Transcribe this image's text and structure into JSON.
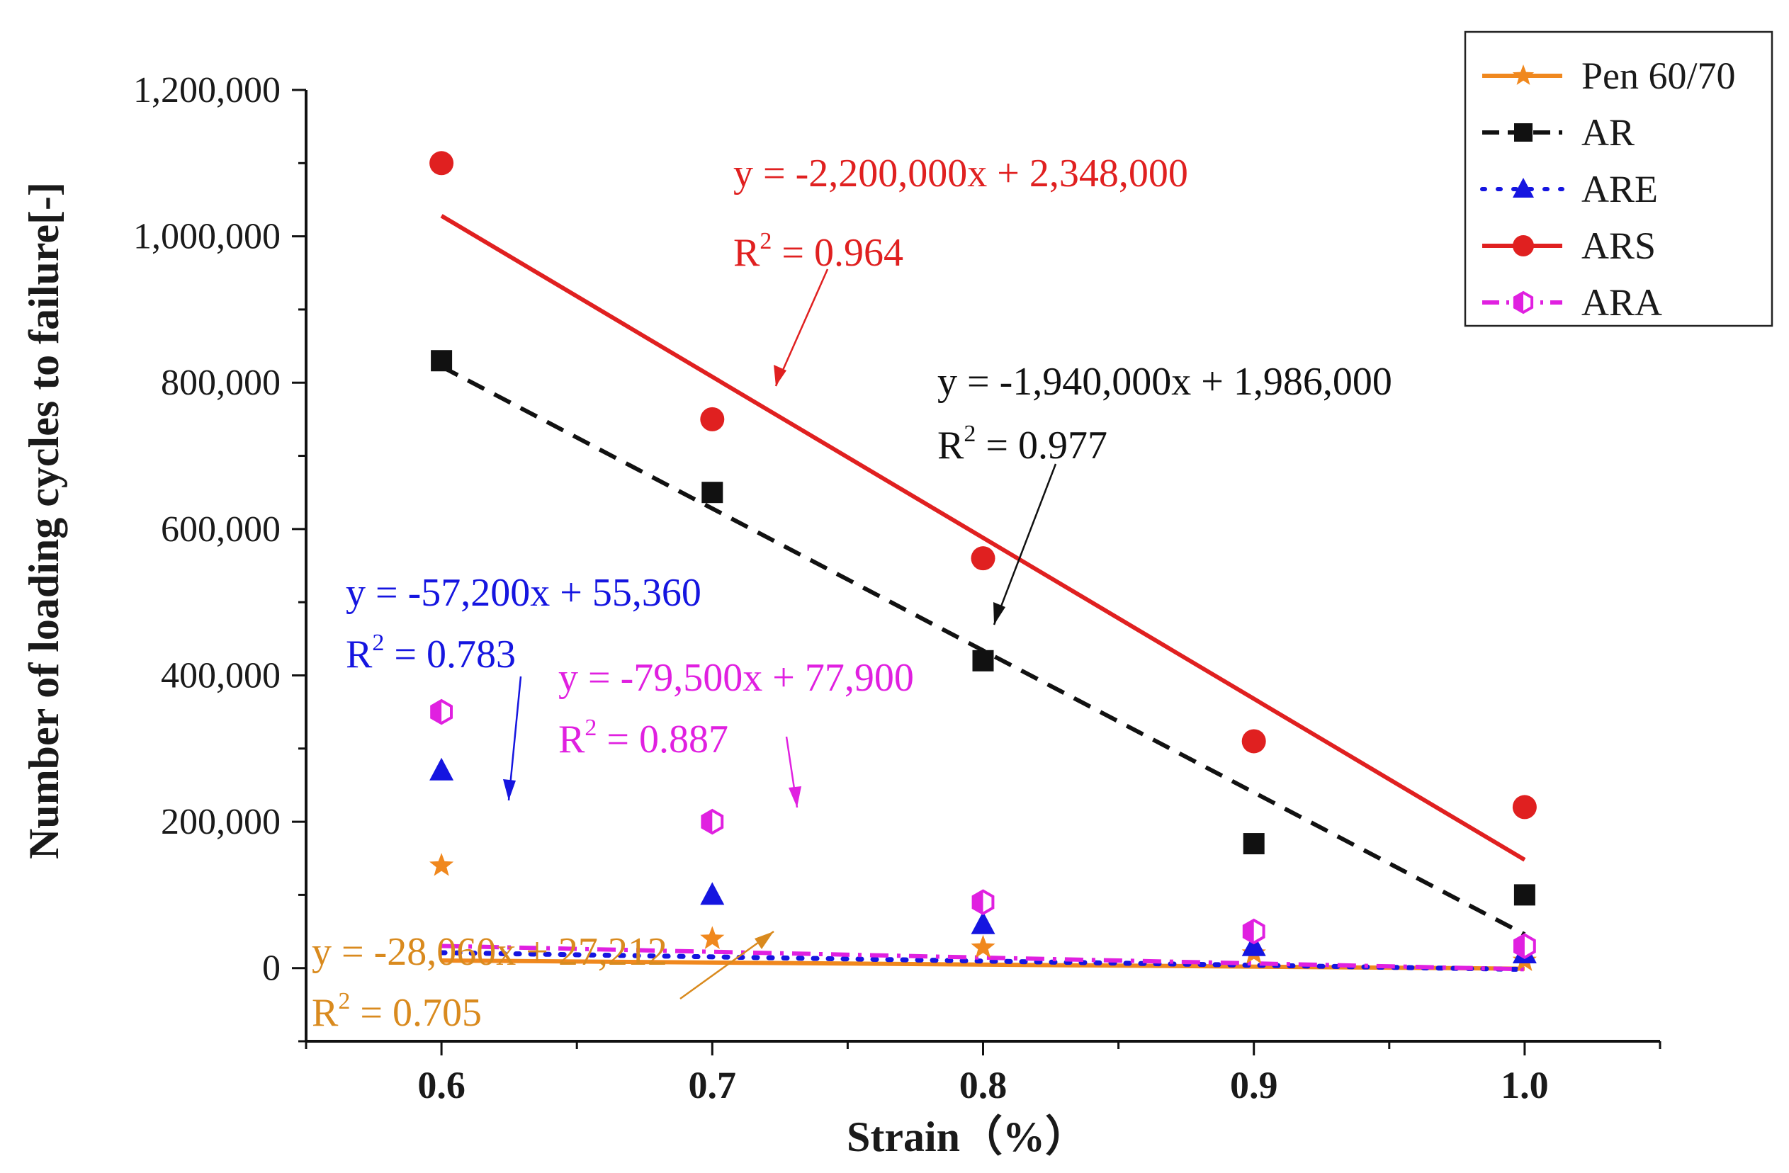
{
  "chart_data": {
    "type": "scatter",
    "title": "",
    "xlabel": "Strain（%）",
    "ylabel": "Number of loading cycles to failure[-]",
    "x": [
      0.6,
      0.7,
      0.8,
      0.9,
      1.0
    ],
    "x_tick_labels": [
      "0.6",
      "0.7",
      "0.8",
      "0.9",
      "1.0"
    ],
    "xlim": [
      0.55,
      1.05
    ],
    "ylim": [
      -100000,
      1200000
    ],
    "y_ticks": [
      0,
      200000,
      400000,
      600000,
      800000,
      1000000,
      1200000
    ],
    "y_tick_labels": [
      "0",
      "200,000",
      "400,000",
      "600,000",
      "800,000",
      "1,000,000",
      "1,200,000"
    ],
    "legend_position": "top-right",
    "series": [
      {
        "name": "Pen 60/70",
        "key": "pen",
        "color": "#f0881e",
        "marker": "star",
        "line_style": "solid",
        "values": [
          140000,
          40000,
          28000,
          20000,
          10000
        ],
        "fit": {
          "slope": -28060,
          "intercept": 27212,
          "r2": "0.705"
        },
        "equation": "y = -28,060x + 27,212",
        "r2_label": "R",
        "r2_value": " = 0.705"
      },
      {
        "name": "AR",
        "key": "ar",
        "color": "#111111",
        "marker": "square",
        "line_style": "dash",
        "values": [
          830000,
          650000,
          420000,
          170000,
          100000
        ],
        "fit": {
          "slope": -1940000,
          "intercept": 1986000,
          "r2": "0.977"
        },
        "equation": "y = -1,940,000x + 1,986,000",
        "r2_label": "R",
        "r2_value": " = 0.977"
      },
      {
        "name": "ARE",
        "key": "are",
        "color": "#1515e0",
        "marker": "triangle",
        "line_style": "dot",
        "values": [
          270000,
          100000,
          60000,
          30000,
          20000
        ],
        "fit": {
          "slope": -57200,
          "intercept": 55360,
          "r2": "0.783"
        },
        "equation": "y = -57,200x + 55,360",
        "r2_label": "R",
        "r2_value": " = 0.783"
      },
      {
        "name": "ARS",
        "key": "ars",
        "color": "#e02020",
        "marker": "circle",
        "line_style": "solid",
        "values": [
          1100000,
          750000,
          560000,
          310000,
          220000
        ],
        "fit": {
          "slope": -2200000,
          "intercept": 2348000,
          "r2": "0.964"
        },
        "equation": "y = -2,200,000x + 2,348,000",
        "r2_label": "R",
        "r2_value": " = 0.964"
      },
      {
        "name": "ARA",
        "key": "ara",
        "color": "#e020e0",
        "marker": "half-hexagon",
        "line_style": "dashdot",
        "values": [
          350000,
          200000,
          90000,
          50000,
          30000
        ],
        "fit": {
          "slope": -79500,
          "intercept": 77900,
          "r2": "0.887"
        },
        "equation": "y = -79,500x + 77,900",
        "r2_label": "R",
        "r2_value": " = 0.887"
      }
    ]
  }
}
